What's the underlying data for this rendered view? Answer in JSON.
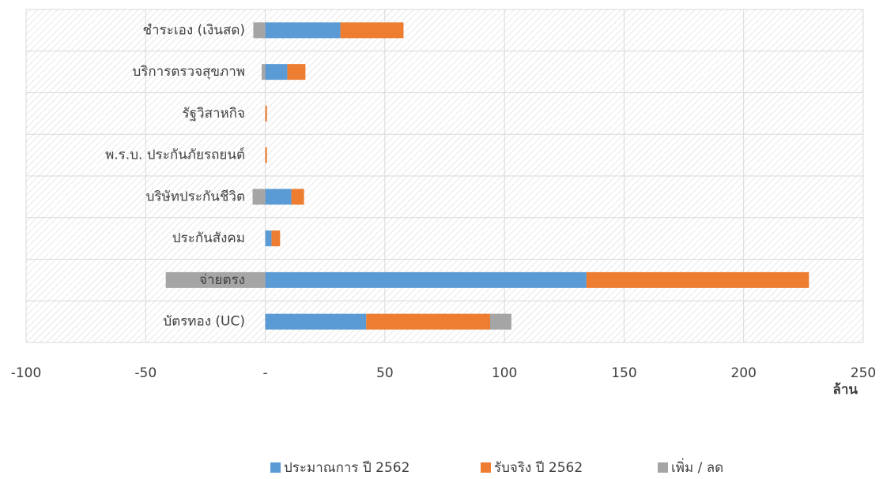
{
  "chart_data": {
    "type": "stacked-barh",
    "categories": [
      "ชำระเอง (เงินสด)",
      "บริการตรวจสุขภาพ",
      "รัฐวิสาหกิจ",
      "พ.ร.บ. ประกันภัยรถยนต์",
      "บริษัทประกันชีวิต",
      "ประกันสังคม",
      "จ่ายตรง",
      "บัตรทอง (UC)"
    ],
    "series": [
      {
        "name": "ประมาณการ ปี 2562",
        "color": "#5b9bd5",
        "values": [
          31.4,
          9.2,
          0,
          0,
          10.9,
          2.6,
          134.3,
          42.2
        ]
      },
      {
        "name": "รับจริง ปี 2562",
        "color": "#ed7d31",
        "values": [
          26.4,
          7.6,
          0.7,
          0.7,
          5.3,
          3.6,
          93,
          51.8
        ]
      },
      {
        "name": "เพิ่ม / ลด",
        "color": "#a5a5a5",
        "values": [
          -5,
          -1.5,
          0,
          0,
          -5.3,
          0,
          -41.6,
          8.9
        ]
      }
    ],
    "xlim": [
      -100,
      250
    ],
    "xticks": [
      -100,
      -50,
      {
        "value": 0,
        "label": "-"
      },
      50,
      100,
      150,
      200,
      250
    ],
    "xlabel": "ล้าน",
    "grid": true,
    "legend": "bottom"
  }
}
